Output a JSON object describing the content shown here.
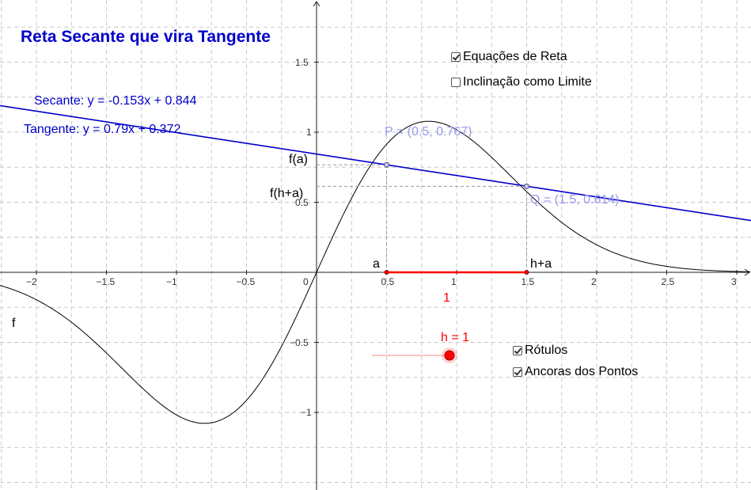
{
  "title": "Reta Secante que vira Tangente",
  "secant_eq": "Secante: y = -0.153x + 0.844",
  "tangent_eq": "Tangente: y = 0.79x + 0.372",
  "checkboxes": [
    {
      "label": "Equações de Reta",
      "checked": true
    },
    {
      "label": "Inclinação como Limite",
      "checked": false
    },
    {
      "label": "Rótulos",
      "checked": true
    },
    {
      "label": "Ancoras dos Pontos",
      "checked": true
    }
  ],
  "labels": {
    "P": "P = (0.5, 0.767)",
    "Q": "Q = (1.5, 0.614)",
    "fa": "f(a)",
    "fha": "f(h+a)",
    "a": "a",
    "ha": "h+a",
    "f": "f",
    "h_value": "h = 1",
    "h_segment": "1"
  },
  "slider": {
    "name": "h",
    "value": 1
  },
  "chart_data": {
    "type": "line",
    "xlim": [
      -2.25,
      3.1
    ],
    "ylim": [
      -1.5,
      1.92
    ],
    "grid": true,
    "x_ticks": [
      "−2",
      "−1.5",
      "−1",
      "−0.5",
      "0",
      "0.5",
      "1",
      "1.5",
      "2",
      "2.5",
      "3"
    ],
    "x_tick_values": [
      -2,
      -1.5,
      -1,
      -0.5,
      0,
      0.5,
      1,
      1.5,
      2,
      2.5,
      3
    ],
    "y_ticks": [
      "1.5",
      "1",
      "0.5",
      "−0.5",
      "−1"
    ],
    "y_tick_values": [
      1.5,
      1,
      0.5,
      -0.5,
      -1
    ],
    "function": "f",
    "secant": {
      "slope": -0.153,
      "intercept": 0.844
    },
    "P": {
      "x": 0.5,
      "y": 0.767
    },
    "Q": {
      "x": 1.5,
      "y": 0.614
    },
    "a": 0.5,
    "h": 1
  },
  "colors": {
    "title": "#0000cc",
    "secant": "#0000cc",
    "curve": "#000000",
    "point": "#9999ee",
    "segment": "#ff0000",
    "slider": "#ff0000"
  }
}
